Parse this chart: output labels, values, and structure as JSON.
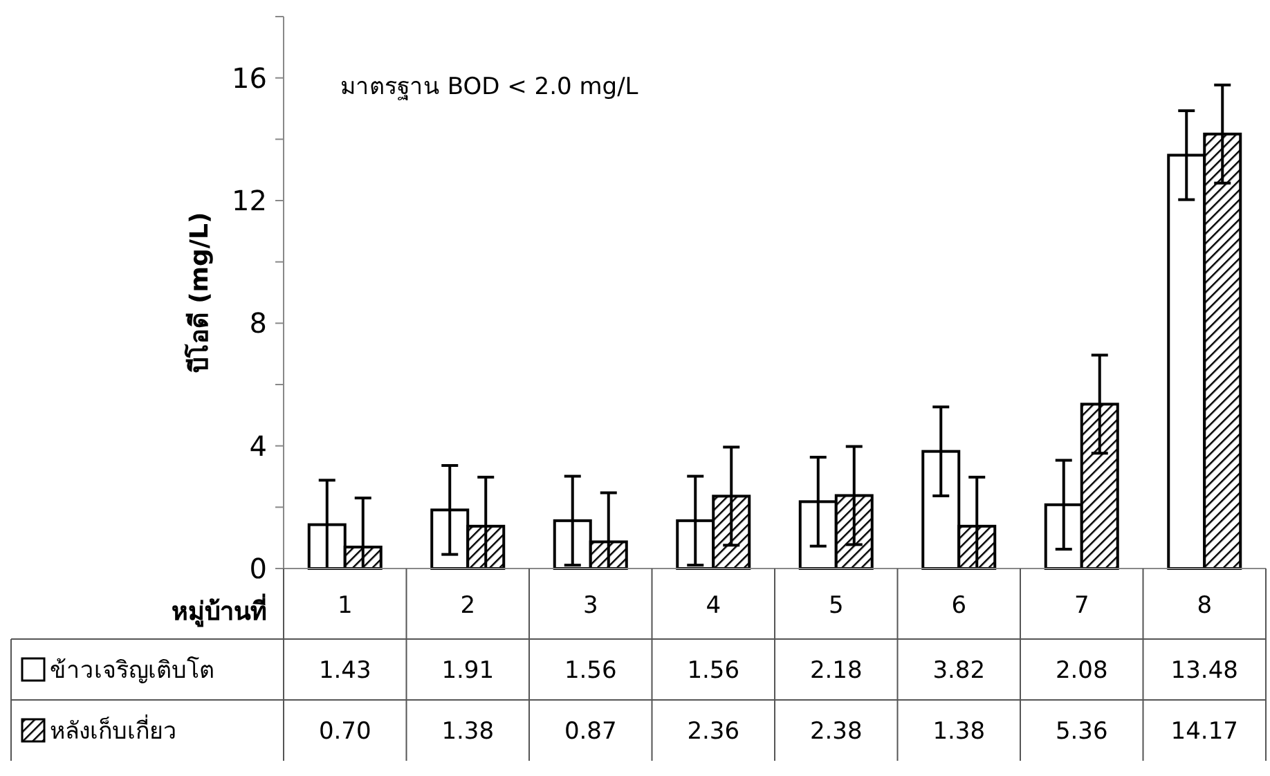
{
  "chart_data": {
    "type": "bar",
    "ylabel": "บีโอดี (mg/L)",
    "xlabel": "หมู่บ้านที่",
    "annotations": [
      "มาตรฐาน BOD < 2.0 mg/L"
    ],
    "categories": [
      "1",
      "2",
      "3",
      "4",
      "5",
      "6",
      "7",
      "8"
    ],
    "series": [
      {
        "name": "ข้าวเจริญเติบโต",
        "color": "#ffffff",
        "values": [
          1.43,
          1.91,
          1.56,
          1.56,
          2.18,
          3.82,
          2.08,
          13.48
        ],
        "errors": [
          [
            0,
            2.88
          ],
          1.45,
          1.45,
          1.45,
          1.45,
          1.45,
          1.45,
          1.45
        ],
        "value_labels": [
          "1.43",
          "1.91",
          "1.56",
          "1.56",
          "2.18",
          "3.82",
          "2.08",
          "13.48"
        ]
      },
      {
        "name": "หลังเก็บเกี่ยว",
        "color": "#000000",
        "values": [
          0.7,
          1.38,
          0.87,
          2.36,
          2.38,
          1.38,
          5.36,
          14.17
        ],
        "errors": [
          [
            0,
            2.3
          ],
          [
            0,
            2.98
          ],
          [
            0,
            2.47
          ],
          1.6,
          1.6,
          [
            0,
            2.98
          ],
          1.6,
          1.6
        ],
        "value_labels": [
          "0.70",
          "1.38",
          "0.87",
          "2.36",
          "2.38",
          "1.38",
          "5.36",
          "14.17"
        ]
      }
    ],
    "ylim": [
      0,
      18
    ],
    "yticks": [
      0,
      {
        "value": 2,
        "label": null
      },
      4,
      {
        "value": 6,
        "label": null
      },
      8,
      {
        "value": 10,
        "label": null
      },
      12,
      {
        "value": 14,
        "label": null
      },
      16,
      {
        "value": 18,
        "label": null
      }
    ],
    "grid": false,
    "legend": "bottom"
  }
}
